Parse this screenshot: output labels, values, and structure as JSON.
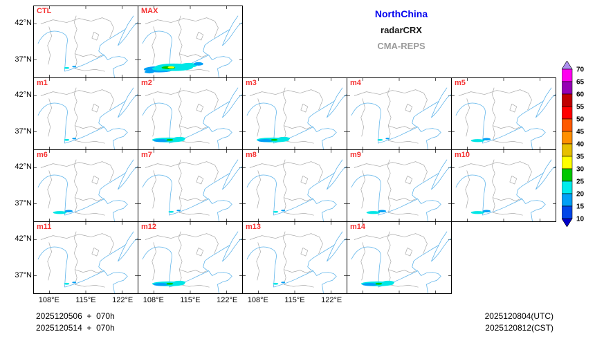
{
  "header": {
    "region": "NorthChina",
    "variable": "radarCRX",
    "model": "CMA-REPS"
  },
  "colors": {
    "title_region": "#0000EE",
    "title_variable": "#161616",
    "title_model": "#9C9C9C",
    "panel_label": "#F53232",
    "province_border_gray": "#A8A8A8",
    "river_coast_blue": "#5FB4EA",
    "echo_cyan": "#00E6E6",
    "echo_blue": "#01A0F6",
    "echo_green": "#00C800",
    "echo_yellow": "#FFFF00"
  },
  "axes": {
    "x_ticks": [
      "108°E",
      "115°E",
      "122°E"
    ],
    "y_ticks": [
      "42°N",
      "37°N"
    ]
  },
  "panels": [
    {
      "label": "CTL",
      "row": 0,
      "col": 0,
      "echo": "dot",
      "y_labels": true,
      "x_labels": false
    },
    {
      "label": "MAX",
      "row": 0,
      "col": 1,
      "echo": "max",
      "y_labels": false,
      "x_labels": false
    },
    {
      "label": "m1",
      "row": 1,
      "col": 0,
      "echo": "dot",
      "y_labels": true,
      "x_labels": false
    },
    {
      "label": "m2",
      "row": 1,
      "col": 1,
      "echo": "medium",
      "y_labels": false,
      "x_labels": false
    },
    {
      "label": "m3",
      "row": 1,
      "col": 2,
      "echo": "medium",
      "y_labels": false,
      "x_labels": false
    },
    {
      "label": "m4",
      "row": 1,
      "col": 3,
      "echo": "dot",
      "y_labels": false,
      "x_labels": false
    },
    {
      "label": "m5",
      "row": 1,
      "col": 4,
      "echo": "small",
      "y_labels": false,
      "x_labels": false
    },
    {
      "label": "m6",
      "row": 2,
      "col": 0,
      "echo": "small",
      "y_labels": true,
      "x_labels": false
    },
    {
      "label": "m7",
      "row": 2,
      "col": 1,
      "echo": "dot",
      "y_labels": false,
      "x_labels": false
    },
    {
      "label": "m8",
      "row": 2,
      "col": 2,
      "echo": "dot",
      "y_labels": false,
      "x_labels": false
    },
    {
      "label": "m9",
      "row": 2,
      "col": 3,
      "echo": "small",
      "y_labels": false,
      "x_labels": false
    },
    {
      "label": "m10",
      "row": 2,
      "col": 4,
      "echo": "small",
      "y_labels": false,
      "x_labels": false
    },
    {
      "label": "m11",
      "row": 3,
      "col": 0,
      "echo": "dot",
      "y_labels": true,
      "x_labels": true
    },
    {
      "label": "m12",
      "row": 3,
      "col": 1,
      "echo": "medium",
      "y_labels": false,
      "x_labels": true
    },
    {
      "label": "m13",
      "row": 3,
      "col": 2,
      "echo": "dot",
      "y_labels": false,
      "x_labels": true
    },
    {
      "label": "m14",
      "row": 3,
      "col": 3,
      "echo": "medium",
      "y_labels": false,
      "x_labels": false
    }
  ],
  "colorbar": {
    "values": [
      "70",
      "65",
      "60",
      "55",
      "50",
      "45",
      "40",
      "35",
      "30",
      "25",
      "20",
      "15",
      "10"
    ],
    "segment_colors_top_to_bottom": [
      "#FF00F0",
      "#9600B4",
      "#C00000",
      "#FF0000",
      "#FF5A00",
      "#FF9000",
      "#E7C000",
      "#FFFF00",
      "#00C800",
      "#00ECEC",
      "#01A0F6",
      "#0146E8"
    ],
    "arrow_top_color": "#AD90F0",
    "arrow_bottom_color": "#0000C8"
  },
  "footer": {
    "init_line_utc": "2025120506  +  070h",
    "init_line_cst": "2025120514  +  070h",
    "valid_utc": "2025120804(UTC)",
    "valid_cst": "2025120812(CST)"
  },
  "chart_data": {
    "type": "heatmap",
    "subtype": "ensemble-map-panel-grid",
    "title": "NorthChina radarCRX CMA-REPS",
    "panel_labels": [
      "CTL",
      "MAX",
      "m1",
      "m2",
      "m3",
      "m4",
      "m5",
      "m6",
      "m7",
      "m8",
      "m9",
      "m10",
      "m11",
      "m12",
      "m13",
      "m14"
    ],
    "grid_rows": [
      [
        "CTL",
        "MAX"
      ],
      [
        "m1",
        "m2",
        "m3",
        "m4",
        "m5"
      ],
      [
        "m6",
        "m7",
        "m8",
        "m9",
        "m10"
      ],
      [
        "m11",
        "m12",
        "m13",
        "m14"
      ]
    ],
    "x_tick_labels": [
      "108°E",
      "115°E",
      "122°E"
    ],
    "y_tick_labels": [
      "42°N",
      "37°N"
    ],
    "colorbar_values_dbz": [
      70,
      65,
      60,
      55,
      50,
      45,
      40,
      35,
      30,
      25,
      20,
      15,
      10
    ],
    "legend_position": "right",
    "init_times": [
      "2025120506 + 070h",
      "2025120514 + 070h"
    ],
    "valid_times": [
      "2025120804(UTC)",
      "2025120812(CST)"
    ],
    "notes": "Composite radar reflectivity forecast maps; cyan/blue echoes near 36-37N in MAX, m2, m3, m5, m6, m9, m10, m12, m14"
  }
}
